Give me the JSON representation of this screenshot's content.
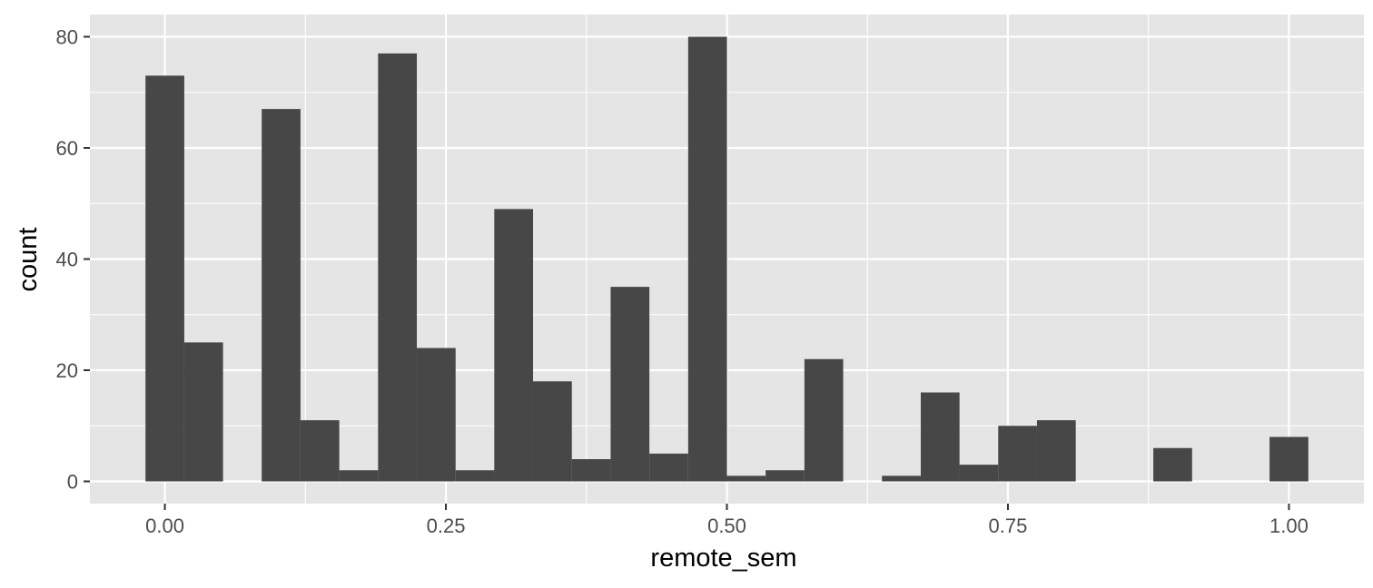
{
  "chart_data": {
    "type": "bar",
    "title": "",
    "xlabel": "remote_sem",
    "ylabel": "count",
    "xlim": [
      -0.0667,
      1.0667
    ],
    "ylim": [
      -4,
      84
    ],
    "x_ticks": [
      0.0,
      0.25,
      0.5,
      0.75,
      1.0
    ],
    "x_tick_labels": [
      "0.00",
      "0.25",
      "0.50",
      "0.75",
      "1.00"
    ],
    "y_ticks": [
      0,
      20,
      40,
      60,
      80
    ],
    "y_tick_labels": [
      "0",
      "20",
      "40",
      "60",
      "80"
    ],
    "grid": true,
    "bin_width": 0.0345,
    "bins": [
      {
        "x": 0.0,
        "count": 73
      },
      {
        "x": 0.0345,
        "count": 25
      },
      {
        "x": 0.069,
        "count": 0
      },
      {
        "x": 0.1034,
        "count": 67
      },
      {
        "x": 0.1379,
        "count": 11
      },
      {
        "x": 0.1724,
        "count": 2
      },
      {
        "x": 0.2069,
        "count": 77
      },
      {
        "x": 0.2414,
        "count": 24
      },
      {
        "x": 0.2759,
        "count": 2
      },
      {
        "x": 0.3103,
        "count": 49
      },
      {
        "x": 0.3448,
        "count": 18
      },
      {
        "x": 0.3793,
        "count": 4
      },
      {
        "x": 0.4138,
        "count": 35
      },
      {
        "x": 0.4483,
        "count": 5
      },
      {
        "x": 0.4828,
        "count": 80
      },
      {
        "x": 0.5172,
        "count": 1
      },
      {
        "x": 0.5517,
        "count": 2
      },
      {
        "x": 0.5862,
        "count": 22
      },
      {
        "x": 0.6207,
        "count": 0
      },
      {
        "x": 0.6552,
        "count": 1
      },
      {
        "x": 0.6897,
        "count": 16
      },
      {
        "x": 0.7241,
        "count": 3
      },
      {
        "x": 0.7586,
        "count": 10
      },
      {
        "x": 0.7931,
        "count": 11
      },
      {
        "x": 0.8276,
        "count": 0
      },
      {
        "x": 0.8621,
        "count": 0
      },
      {
        "x": 0.8966,
        "count": 6
      },
      {
        "x": 0.931,
        "count": 0
      },
      {
        "x": 0.9655,
        "count": 0
      },
      {
        "x": 1.0,
        "count": 8
      }
    ],
    "colors": {
      "panel_background": "#e5e5e5",
      "grid": "#ffffff",
      "bar_fill": "#474747",
      "tick_text": "#4d4d4d",
      "tick_mark": "#333333",
      "title_text": "#000000"
    }
  }
}
